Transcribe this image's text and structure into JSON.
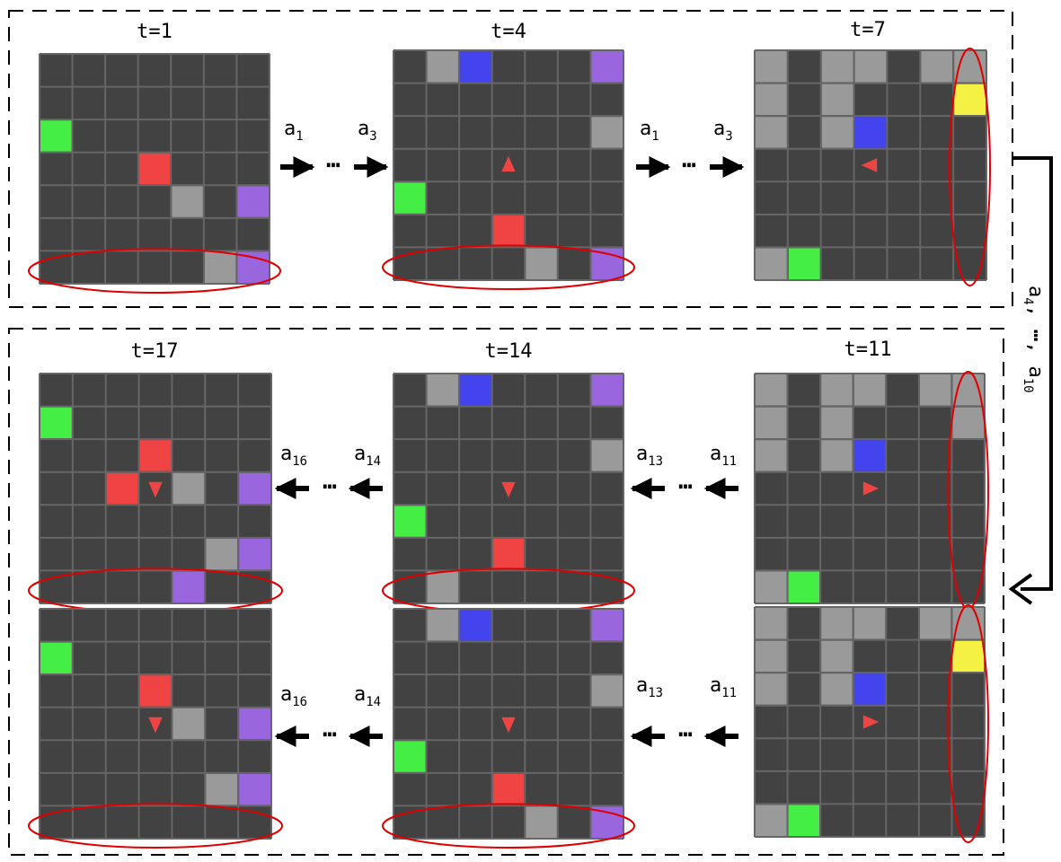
{
  "time_labels": [
    "t=1",
    "t=4",
    "t=7",
    "t=17",
    "t=14",
    "t=11"
  ],
  "ellipsis": "⋯",
  "side_label": {
    "first": "a",
    "first_sub": "4",
    "dots": "⋯",
    "last": "a",
    "last_sub": "10",
    "comma": ","
  },
  "action_groups": [
    {
      "id": "a1-a3-left",
      "dir": "right",
      "first": "a",
      "first_sub": "1",
      "second": "a",
      "second_sub": "3"
    },
    {
      "id": "a1-a3-right",
      "dir": "right",
      "first": "a",
      "first_sub": "1",
      "second": "a",
      "second_sub": "3"
    },
    {
      "id": "a16-a14-mid",
      "dir": "left",
      "first": "a",
      "first_sub": "16",
      "second": "a",
      "second_sub": "14"
    },
    {
      "id": "a13-a11-mid",
      "dir": "left",
      "first": "a",
      "first_sub": "13",
      "second": "a",
      "second_sub": "11"
    },
    {
      "id": "a16-a14-bot",
      "dir": "left",
      "first": "a",
      "first_sub": "16",
      "second": "a",
      "second_sub": "14"
    },
    {
      "id": "a13-a11-bot",
      "dir": "left",
      "first": "a",
      "first_sub": "13",
      "second": "a",
      "second_sub": "11"
    }
  ],
  "colors": {
    "grid_cell": "#424242",
    "grid_line": "#666666",
    "wall": "#9a9a9a",
    "green": "#44ee44",
    "red": "#f04444",
    "purple": "#9966dd",
    "blue": "#4444ee",
    "yellow": "#f4f044",
    "agent": "#ee4444",
    "highlight": "#e00000"
  },
  "grids": [
    {
      "name": "grid-t1",
      "agent": {
        "row": 3,
        "col": 3,
        "dir": "up"
      },
      "cells": [
        {
          "row": 2,
          "col": 0,
          "c": "green"
        },
        {
          "row": 3,
          "col": 3,
          "c": "red"
        },
        {
          "row": 4,
          "col": 4,
          "c": "wall"
        },
        {
          "row": 4,
          "col": 6,
          "c": "purple"
        },
        {
          "row": 6,
          "col": 5,
          "c": "wall"
        },
        {
          "row": 6,
          "col": 6,
          "c": "purple"
        }
      ],
      "highlight": "bottom"
    },
    {
      "name": "grid-t4",
      "agent": {
        "row": 3,
        "col": 3,
        "dir": "up"
      },
      "cells": [
        {
          "row": 0,
          "col": 1,
          "c": "wall"
        },
        {
          "row": 0,
          "col": 2,
          "c": "blue"
        },
        {
          "row": 0,
          "col": 6,
          "c": "purple"
        },
        {
          "row": 2,
          "col": 6,
          "c": "wall"
        },
        {
          "row": 4,
          "col": 0,
          "c": "green"
        },
        {
          "row": 5,
          "col": 3,
          "c": "red"
        },
        {
          "row": 6,
          "col": 4,
          "c": "wall"
        },
        {
          "row": 6,
          "col": 6,
          "c": "purple"
        }
      ],
      "highlight": "bottom"
    },
    {
      "name": "grid-t7",
      "agent": {
        "row": 3,
        "col": 3,
        "dir": "left"
      },
      "cells": [
        {
          "row": 0,
          "col": 0,
          "c": "wall"
        },
        {
          "row": 0,
          "col": 2,
          "c": "wall"
        },
        {
          "row": 0,
          "col": 3,
          "c": "wall"
        },
        {
          "row": 0,
          "col": 5,
          "c": "wall"
        },
        {
          "row": 0,
          "col": 6,
          "c": "wall"
        },
        {
          "row": 1,
          "col": 0,
          "c": "wall"
        },
        {
          "row": 1,
          "col": 2,
          "c": "wall"
        },
        {
          "row": 1,
          "col": 6,
          "c": "yellow"
        },
        {
          "row": 2,
          "col": 0,
          "c": "wall"
        },
        {
          "row": 2,
          "col": 2,
          "c": "wall"
        },
        {
          "row": 2,
          "col": 3,
          "c": "blue"
        },
        {
          "row": 6,
          "col": 0,
          "c": "wall"
        },
        {
          "row": 6,
          "col": 1,
          "c": "green"
        }
      ],
      "highlight": "right"
    },
    {
      "name": "grid-t17",
      "agent": {
        "row": 3,
        "col": 3,
        "dir": "down"
      },
      "cells": [
        {
          "row": 1,
          "col": 0,
          "c": "green"
        },
        {
          "row": 2,
          "col": 3,
          "c": "red"
        },
        {
          "row": 3,
          "col": 2,
          "c": "red"
        },
        {
          "row": 3,
          "col": 4,
          "c": "wall"
        },
        {
          "row": 3,
          "col": 6,
          "c": "purple"
        },
        {
          "row": 5,
          "col": 5,
          "c": "wall"
        },
        {
          "row": 5,
          "col": 6,
          "c": "purple"
        },
        {
          "row": 6,
          "col": 4,
          "c": "purple"
        }
      ],
      "highlight": "bottom"
    },
    {
      "name": "grid-t14",
      "agent": {
        "row": 3,
        "col": 3,
        "dir": "down"
      },
      "cells": [
        {
          "row": 0,
          "col": 1,
          "c": "wall"
        },
        {
          "row": 0,
          "col": 2,
          "c": "blue"
        },
        {
          "row": 0,
          "col": 6,
          "c": "purple"
        },
        {
          "row": 2,
          "col": 6,
          "c": "wall"
        },
        {
          "row": 4,
          "col": 0,
          "c": "green"
        },
        {
          "row": 5,
          "col": 3,
          "c": "red"
        },
        {
          "row": 6,
          "col": 1,
          "c": "wall"
        }
      ],
      "highlight": "bottom"
    },
    {
      "name": "grid-t11",
      "agent": {
        "row": 3,
        "col": 3,
        "dir": "right"
      },
      "cells": [
        {
          "row": 0,
          "col": 0,
          "c": "wall"
        },
        {
          "row": 0,
          "col": 2,
          "c": "wall"
        },
        {
          "row": 0,
          "col": 3,
          "c": "wall"
        },
        {
          "row": 0,
          "col": 5,
          "c": "wall"
        },
        {
          "row": 0,
          "col": 6,
          "c": "wall"
        },
        {
          "row": 1,
          "col": 0,
          "c": "wall"
        },
        {
          "row": 1,
          "col": 2,
          "c": "wall"
        },
        {
          "row": 1,
          "col": 6,
          "c": "wall"
        },
        {
          "row": 2,
          "col": 0,
          "c": "wall"
        },
        {
          "row": 2,
          "col": 2,
          "c": "wall"
        },
        {
          "row": 2,
          "col": 3,
          "c": "blue"
        },
        {
          "row": 6,
          "col": 0,
          "c": "wall"
        },
        {
          "row": 6,
          "col": 1,
          "c": "green"
        }
      ],
      "highlight": "right"
    },
    {
      "name": "grid-alt-left",
      "agent": {
        "row": 3,
        "col": 3,
        "dir": "down"
      },
      "cells": [
        {
          "row": 1,
          "col": 0,
          "c": "green"
        },
        {
          "row": 2,
          "col": 3,
          "c": "red"
        },
        {
          "row": 3,
          "col": 4,
          "c": "wall"
        },
        {
          "row": 3,
          "col": 6,
          "c": "purple"
        },
        {
          "row": 5,
          "col": 5,
          "c": "wall"
        },
        {
          "row": 5,
          "col": 6,
          "c": "purple"
        }
      ],
      "highlight": "bottom"
    },
    {
      "name": "grid-alt-mid",
      "agent": {
        "row": 3,
        "col": 3,
        "dir": "down"
      },
      "cells": [
        {
          "row": 0,
          "col": 1,
          "c": "wall"
        },
        {
          "row": 0,
          "col": 2,
          "c": "blue"
        },
        {
          "row": 0,
          "col": 6,
          "c": "purple"
        },
        {
          "row": 2,
          "col": 6,
          "c": "wall"
        },
        {
          "row": 4,
          "col": 0,
          "c": "green"
        },
        {
          "row": 5,
          "col": 3,
          "c": "red"
        },
        {
          "row": 6,
          "col": 4,
          "c": "wall"
        },
        {
          "row": 6,
          "col": 6,
          "c": "purple"
        }
      ],
      "highlight": "bottom"
    },
    {
      "name": "grid-alt-right",
      "agent": {
        "row": 3,
        "col": 3,
        "dir": "right"
      },
      "cells": [
        {
          "row": 0,
          "col": 0,
          "c": "wall"
        },
        {
          "row": 0,
          "col": 2,
          "c": "wall"
        },
        {
          "row": 0,
          "col": 3,
          "c": "wall"
        },
        {
          "row": 0,
          "col": 5,
          "c": "wall"
        },
        {
          "row": 0,
          "col": 6,
          "c": "wall"
        },
        {
          "row": 1,
          "col": 0,
          "c": "wall"
        },
        {
          "row": 1,
          "col": 2,
          "c": "wall"
        },
        {
          "row": 1,
          "col": 6,
          "c": "yellow"
        },
        {
          "row": 2,
          "col": 0,
          "c": "wall"
        },
        {
          "row": 2,
          "col": 2,
          "c": "wall"
        },
        {
          "row": 2,
          "col": 3,
          "c": "blue"
        },
        {
          "row": 6,
          "col": 0,
          "c": "wall"
        },
        {
          "row": 6,
          "col": 1,
          "c": "green"
        }
      ],
      "highlight": "right"
    }
  ]
}
